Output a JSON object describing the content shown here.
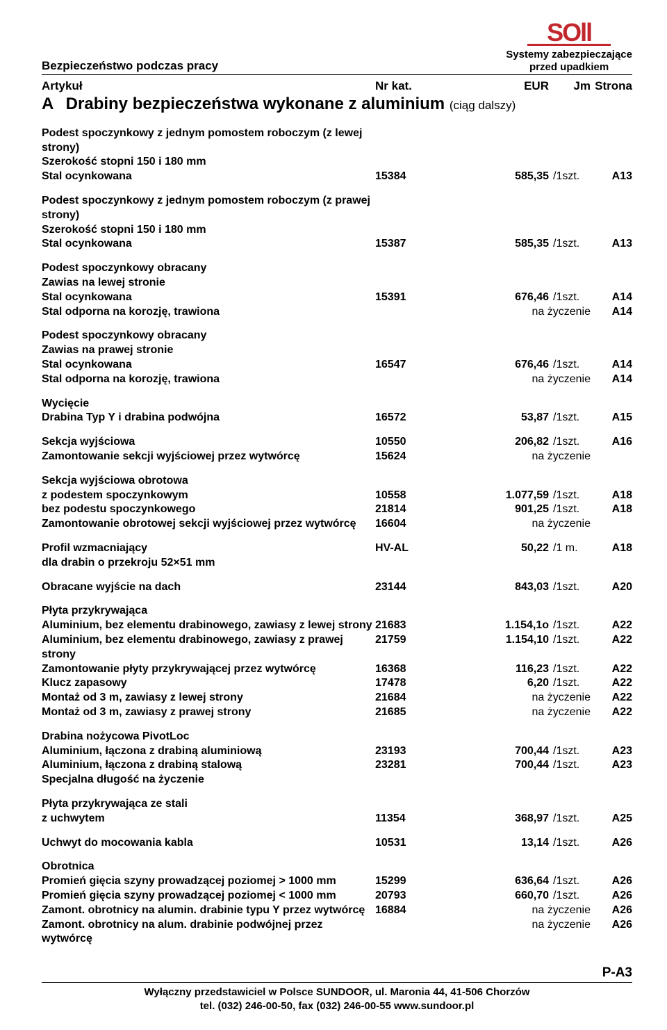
{
  "header": {
    "title_left": "Bezpieczeństwo podczas pracy",
    "brand1": "Systemy zabezpieczające",
    "brand2": "przed upadkiem",
    "logo_text": "SOll",
    "logo_color": "#c1272d",
    "col_artykul": "Artykuł",
    "col_nrkat": "Nr kat.",
    "col_eur": "EUR",
    "col_jm": "Jm",
    "col_strona": "Strona"
  },
  "section": {
    "letter": "A",
    "title": "Drabiny bezpieczeństwa wykonane z aluminium",
    "cont": "(ciąg dalszy)"
  },
  "g1": {
    "l1": "Podest spoczynkowy z jednym pomostem roboczym (z lewej",
    "l2": "strony)",
    "l3": "Szerokość stopni 150 i 180 mm",
    "l4": "Stal ocynkowana",
    "nr": "15384",
    "eur": "585,35",
    "jm": "/1szt.",
    "pg": "A13"
  },
  "g2": {
    "l1": "Podest spoczynkowy z jednym pomostem roboczym (z prawej",
    "l2": "strony)",
    "l3": "Szerokość stopni 150 i 180 mm",
    "l4": "Stal ocynkowana",
    "nr": "15387",
    "eur": "585,35",
    "jm": "/1szt.",
    "pg": "A13"
  },
  "g3": {
    "l1": "Podest spoczynkowy obracany",
    "l2": "Zawias na lewej stronie",
    "l3": "Stal ocynkowana",
    "l4": "Stal odporna na korozję, trawiona",
    "nr": "15391",
    "eur": "676,46",
    "jm": "/1szt.",
    "pg": "A14",
    "naz": "na życzenie",
    "pg2": "A14"
  },
  "g4": {
    "l1": "Podest spoczynkowy obracany",
    "l2": "Zawias na prawej stronie",
    "l3": "Stal ocynkowana",
    "l4": "Stal odporna na korozję, trawiona",
    "nr": "16547",
    "eur": "676,46",
    "jm": "/1szt.",
    "pg": "A14",
    "naz": "na życzenie",
    "pg2": "A14"
  },
  "g5": {
    "l1": "Wycięcie",
    "l2": "Drabina Typ Y i drabina podwójna",
    "nr": "16572",
    "eur": "53,87",
    "jm": "/1szt.",
    "pg": "A15"
  },
  "g6": {
    "l1": "Sekcja wyjściowa",
    "l2": "Zamontowanie sekcji wyjściowej przez wytwórcę",
    "nr1": "10550",
    "eur1": "206,82",
    "jm1": "/1szt.",
    "pg1": "A16",
    "nr2": "15624",
    "naz": "na życzenie"
  },
  "g7": {
    "l1": "Sekcja wyjściowa obrotowa",
    "l2": "z podestem spoczynkowym",
    "l3": "bez podestu spoczynkowego",
    "l4": "Zamontowanie obrotowej sekcji wyjściowej przez wytwórcę",
    "nr1": "10558",
    "eur1": "1.077,59",
    "jm1": "/1szt.",
    "pg1": "A18",
    "nr2": "21814",
    "eur2": "901,25",
    "jm2": "/1szt.",
    "pg2": "A18",
    "nr3": "16604",
    "naz": "na życzenie"
  },
  "g8": {
    "l1": "Profil wzmacniający",
    "l2": "dla drabin o przekroju 52×51 mm",
    "nr": "HV-AL",
    "eur": "50,22",
    "jm": "/1 m.",
    "pg": "A18"
  },
  "g9": {
    "l1": "Obracane wyjście na dach",
    "nr": "23144",
    "eur": "843,03",
    "jm": "/1szt.",
    "pg": "A20"
  },
  "g10": {
    "l1": "Płyta przykrywająca",
    "l2": "Aluminium, bez elementu drabinowego, zawiasy z lewej strony",
    "l3": "Aluminium, bez elementu drabinowego, zawiasy z prawej strony",
    "l4": "Zamontowanie płyty przykrywającej przez wytwórcę",
    "l5": "Klucz zapasowy",
    "l6": "Montaż od 3 m, zawiasy z lewej strony",
    "l7": "Montaż od 3 m, zawiasy z prawej strony",
    "nr2": "21683",
    "eur2": "1.154,1o",
    "jm2": "/1szt.",
    "pg2": "A22",
    "nr3": "21759",
    "eur3": "1.154,10",
    "jm3": "/1szt.",
    "pg3": "A22",
    "nr4": "16368",
    "eur4": "116,23",
    "jm4": "/1szt.",
    "pg4": "A22",
    "nr5": "17478",
    "eur5": "6,20",
    "jm5": "/1szt.",
    "pg5": "A22",
    "nr6": "21684",
    "naz6": "na życzenie",
    "pg6": "A22",
    "nr7": "21685",
    "naz7": "na życzenie",
    "pg7": "A22"
  },
  "g11": {
    "l1": "Drabina nożycowa PivotLoc",
    "l2": "Aluminium, łączona z drabiną aluminiową",
    "l3": "Aluminium, łączona z drabiną stalową",
    "l4": "Specjalna długość na życzenie",
    "nr2": "23193",
    "eur2": "700,44",
    "jm2": "/1szt.",
    "pg2": "A23",
    "nr3": "23281",
    "eur3": "700,44",
    "jm3": "/1szt.",
    "pg3": "A23"
  },
  "g12": {
    "l1": "Płyta przykrywająca ze stali",
    "l2": "z uchwytem",
    "nr": "11354",
    "eur": "368,97",
    "jm": "/1szt.",
    "pg": "A25"
  },
  "g13": {
    "l1": "Uchwyt do mocowania kabla",
    "nr": "10531",
    "eur": "13,14",
    "jm": "/1szt.",
    "pg": "A26"
  },
  "g14": {
    "l1": "Obrotnica",
    "l2": "Promień gięcia szyny prowadzącej poziomej > 1000 mm",
    "l3": "Promień gięcia szyny prowadzącej poziomej < 1000 mm",
    "l4": "Zamont. obrotnicy na alumin. drabinie typu Y przez wytwórcę",
    "l5": "Zamont. obrotnicy na alum. drabinie podwójnej przez wytwórcę",
    "nr2": "15299",
    "eur2": "636,64",
    "jm2": "/1szt.",
    "pg2": "A26",
    "nr3": "20793",
    "eur3": "660,70",
    "jm3": "/1szt.",
    "pg3": "A26",
    "nr4": "16884",
    "naz4": "na życzenie",
    "pg4": "A26",
    "naz5": "na życzenie",
    "pg5": "A26"
  },
  "footer": {
    "page": "P-A3",
    "line1": "Wyłączny  przedstawiciel w Polsce SUNDOOR, ul. Maronia 44, 41-506 Chorzów",
    "line2": "tel. (032) 246-00-50, fax (032) 246-00-55   www.sundoor.pl"
  }
}
